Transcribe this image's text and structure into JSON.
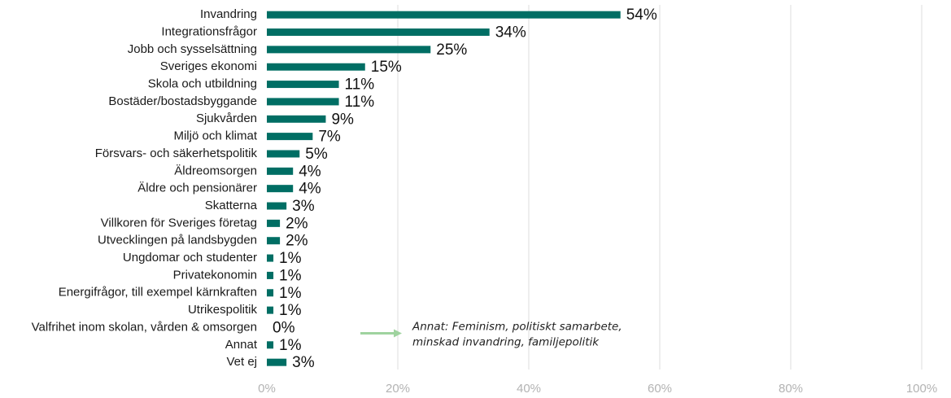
{
  "chart_data": {
    "type": "bar",
    "orientation": "horizontal",
    "categories": [
      "Invandring",
      "Integrationsfrågor",
      "Jobb och sysselsättning",
      "Sveriges ekonomi",
      "Skola och utbildning",
      "Bostäder/bostadsbyggande",
      "Sjukvården",
      "Miljö och klimat",
      "Försvars- och säkerhetspolitik",
      "Äldreomsorgen",
      "Äldre och pensionärer",
      "Skatterna",
      "Villkoren för Sveriges företag",
      "Utvecklingen på landsbygden",
      "Ungdomar och studenter",
      "Privatekonomin",
      "Energifrågor, till exempel kärnkraften",
      "Utrikespolitik",
      "Valfrihet inom skolan, vården & omsorgen",
      "Annat",
      "Vet ej"
    ],
    "values": [
      54,
      34,
      25,
      15,
      11,
      11,
      9,
      7,
      5,
      4,
      4,
      3,
      2,
      2,
      1,
      1,
      1,
      1,
      0,
      1,
      3
    ],
    "value_labels": [
      "54%",
      "34%",
      "25%",
      "15%",
      "11%",
      "11%",
      "9%",
      "7%",
      "5%",
      "4%",
      "4%",
      "3%",
      "2%",
      "2%",
      "1%",
      "1%",
      "1%",
      "1%",
      "0%",
      "1%",
      "3%"
    ],
    "xlim": [
      0,
      100
    ],
    "xticks": [
      0,
      20,
      40,
      60,
      80,
      100
    ],
    "xtick_labels": [
      "0%",
      "20%",
      "40%",
      "60%",
      "80%",
      "100%"
    ],
    "grid": "vertical",
    "legend": "none",
    "title": "",
    "xlabel": "",
    "ylabel": "",
    "annotation": {
      "lines": [
        "Annat: Feminism, politiskt samarbete,",
        "minskad invandring, familjepolitik"
      ],
      "points_to": "Annat"
    },
    "colors": {
      "bar": "#006e64",
      "grid": "#dedede",
      "tick_text": "#b3b3b3",
      "arrow": "#9fd39f"
    }
  }
}
